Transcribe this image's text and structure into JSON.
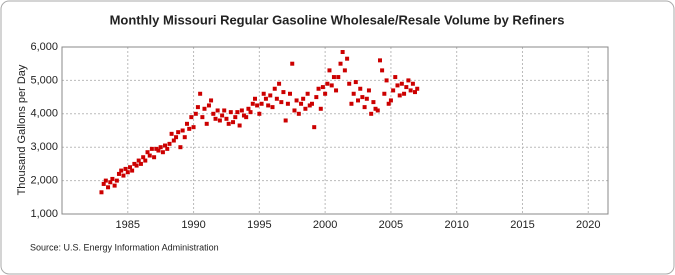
{
  "chart_data": {
    "type": "scatter",
    "title": "Monthly Missouri Regular Gasoline Wholesale/Resale Volume by Refiners",
    "y_label": "Thousand Gallons per Day",
    "source": "Source: U.S. Energy Information Administration",
    "color": "#cc0000",
    "grid": true,
    "xlim": [
      1980,
      2021.5
    ],
    "ylim": [
      1000,
      6000
    ],
    "xticks": [
      1985,
      1990,
      1995,
      2000,
      2005,
      2010,
      2015,
      2020
    ],
    "yticks": [
      {
        "value": 1000,
        "label": "1,000"
      },
      {
        "value": 2000,
        "label": "2,000"
      },
      {
        "value": 3000,
        "label": "3,000"
      },
      {
        "value": 4000,
        "label": "4,000"
      },
      {
        "value": 5000,
        "label": "5,000"
      },
      {
        "value": 6000,
        "label": "6,000"
      }
    ],
    "x": [
      1983.0,
      1983.17,
      1983.33,
      1983.5,
      1983.67,
      1983.83,
      1984.0,
      1984.17,
      1984.33,
      1984.5,
      1984.67,
      1984.83,
      1985.0,
      1985.17,
      1985.33,
      1985.5,
      1985.67,
      1985.83,
      1986.0,
      1986.17,
      1986.33,
      1986.5,
      1986.67,
      1986.83,
      1987.0,
      1987.17,
      1987.33,
      1987.5,
      1987.67,
      1987.83,
      1988.0,
      1988.17,
      1988.33,
      1988.5,
      1988.67,
      1988.83,
      1989.0,
      1989.17,
      1989.33,
      1989.5,
      1989.67,
      1989.83,
      1990.0,
      1990.17,
      1990.33,
      1990.5,
      1990.67,
      1990.83,
      1991.0,
      1991.17,
      1991.33,
      1991.5,
      1991.67,
      1991.83,
      1992.0,
      1992.17,
      1992.33,
      1992.5,
      1992.67,
      1992.83,
      1993.0,
      1993.17,
      1993.33,
      1993.5,
      1993.67,
      1993.83,
      1994.0,
      1994.17,
      1994.33,
      1994.5,
      1994.67,
      1994.83,
      1995.0,
      1995.17,
      1995.33,
      1995.5,
      1995.67,
      1995.83,
      1996.0,
      1996.17,
      1996.33,
      1996.5,
      1996.67,
      1996.83,
      1997.0,
      1997.17,
      1997.33,
      1997.5,
      1997.67,
      1997.83,
      1998.0,
      1998.17,
      1998.33,
      1998.5,
      1998.67,
      1998.83,
      1999.0,
      1999.17,
      1999.33,
      1999.5,
      1999.67,
      1999.83,
      2000.0,
      2000.17,
      2000.33,
      2000.5,
      2000.67,
      2000.83,
      2001.0,
      2001.17,
      2001.33,
      2001.5,
      2001.67,
      2001.83,
      2002.0,
      2002.17,
      2002.33,
      2002.5,
      2002.67,
      2002.83,
      2003.0,
      2003.17,
      2003.33,
      2003.5,
      2003.67,
      2003.83,
      2004.0,
      2004.17,
      2004.33,
      2004.5,
      2004.67,
      2004.83,
      2005.0,
      2005.17,
      2005.33,
      2005.5,
      2005.67,
      2005.83,
      2006.0,
      2006.17,
      2006.33,
      2006.5,
      2006.67,
      2006.83,
      2007.0
    ],
    "values": [
      1650,
      1900,
      2000,
      1800,
      1950,
      2050,
      1850,
      2000,
      2200,
      2300,
      2150,
      2350,
      2250,
      2400,
      2300,
      2500,
      2450,
      2600,
      2500,
      2700,
      2600,
      2850,
      2750,
      2950,
      2700,
      2950,
      2900,
      3000,
      2850,
      3050,
      2950,
      3100,
      3400,
      3200,
      3300,
      3450,
      3000,
      3500,
      3300,
      3700,
      3550,
      3900,
      3600,
      4000,
      4200,
      4600,
      3900,
      4150,
      3700,
      4250,
      4400,
      4000,
      3850,
      4100,
      3800,
      3950,
      4100,
      3850,
      3700,
      4050,
      3750,
      3900,
      4050,
      3650,
      4100,
      3950,
      3900,
      4150,
      4050,
      4300,
      4450,
      4250,
      4000,
      4300,
      4600,
      4450,
      4250,
      4550,
      4200,
      4750,
      4450,
      4900,
      4350,
      4650,
      3800,
      4300,
      4600,
      5500,
      4100,
      4400,
      4000,
      4300,
      4450,
      4150,
      4600,
      4250,
      4300,
      3600,
      4500,
      4750,
      4150,
      4800,
      4600,
      4900,
      5300,
      4850,
      5100,
      4700,
      5100,
      5500,
      5850,
      5300,
      5650,
      4900,
      4300,
      4600,
      4950,
      4400,
      4750,
      4500,
      4200,
      4450,
      4700,
      4000,
      4350,
      4150,
      4100,
      5600,
      5300,
      4600,
      5000,
      4300,
      4400,
      4700,
      5100,
      4850,
      4550,
      4900,
      4600,
      4800,
      5000,
      4700,
      4900,
      4650,
      4750
    ]
  }
}
